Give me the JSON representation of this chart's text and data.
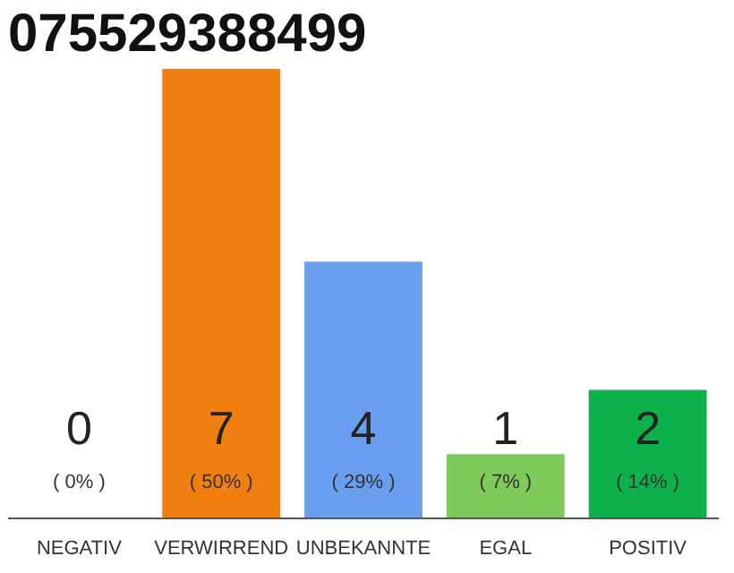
{
  "chart_data": {
    "type": "bar",
    "title": "075529388499",
    "categories": [
      "NEGATIV",
      "VERWIRREND",
      "UNBEKANNTE",
      "EGAL",
      "POSITIV"
    ],
    "values": [
      0,
      7,
      4,
      1,
      2
    ],
    "colors": [
      "#e0311f",
      "#f07f0f",
      "#6a9ff0",
      "#7ecb5b",
      "#0db04b"
    ],
    "data_labels": true,
    "annotations": [
      "( 0% )",
      "( 50% )",
      "( 29% )",
      "( 7% )",
      "( 14% )"
    ],
    "grid": false
  }
}
